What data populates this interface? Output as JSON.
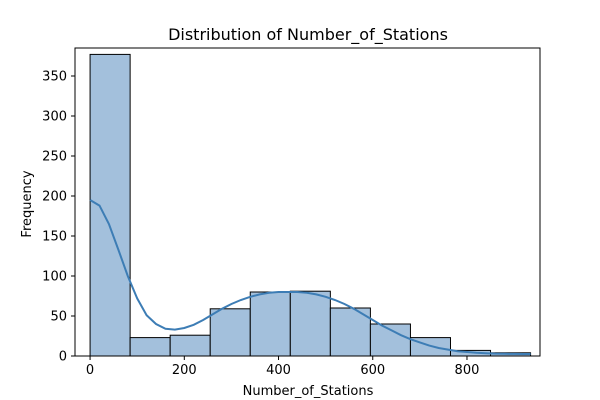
{
  "chart_data": {
    "type": "histogram",
    "title": "Distribution of Number_of_Stations",
    "xlabel": "Number_of_Stations",
    "ylabel": "Frequency",
    "xlim": [
      -32,
      955
    ],
    "ylim": [
      0,
      385
    ],
    "xticks": [
      0,
      200,
      400,
      600,
      800
    ],
    "yticks": [
      0,
      50,
      100,
      150,
      200,
      250,
      300,
      350
    ],
    "bin_edges": [
      0,
      85,
      170,
      255,
      340,
      425,
      510,
      595,
      680,
      765,
      850,
      935
    ],
    "counts": [
      377,
      23,
      26,
      59,
      80,
      81,
      60,
      40,
      23,
      7,
      4
    ],
    "bar_color": "#a3c0dc",
    "edge_color": "#000000",
    "kde": {
      "color": "#3d7db5",
      "x": [
        0,
        20,
        40,
        60,
        80,
        100,
        120,
        140,
        160,
        180,
        200,
        220,
        240,
        260,
        280,
        300,
        320,
        340,
        360,
        380,
        400,
        420,
        440,
        460,
        480,
        500,
        520,
        540,
        560,
        580,
        600,
        620,
        640,
        660,
        680,
        700,
        720,
        740,
        760,
        780,
        800,
        820,
        840,
        860,
        880,
        900,
        920,
        935
      ],
      "y": [
        195,
        188,
        165,
        133,
        100,
        72,
        51,
        40,
        34,
        33,
        35,
        39,
        45,
        52,
        59,
        65,
        70,
        74,
        77,
        79,
        80,
        80,
        80,
        79,
        77,
        74,
        70,
        65,
        59,
        52,
        45,
        38,
        32,
        26,
        21,
        17,
        13,
        10,
        8,
        6,
        5,
        4,
        3.5,
        3,
        2.8,
        2.6,
        2.5,
        2.5
      ]
    }
  }
}
